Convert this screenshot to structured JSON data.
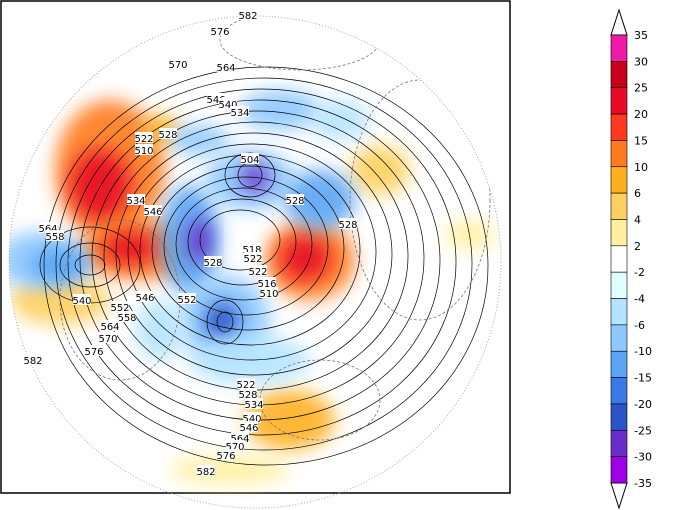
{
  "colorbar": {
    "labels": [
      35,
      30,
      25,
      20,
      15,
      10,
      6,
      4,
      2,
      -2,
      -4,
      -6,
      -10,
      -15,
      -20,
      -25,
      -30,
      -35
    ],
    "colors": [
      "#f01aa8",
      "#c8001c",
      "#e80a28",
      "#ff3a22",
      "#ff7a1e",
      "#ffb020",
      "#ffd060",
      "#fff0a0",
      "#ffffff",
      "#e0ffff",
      "#b4e4ff",
      "#8cc8ff",
      "#5aa5f5",
      "#3a7ae8",
      "#2a55c8",
      "#6a2ec8",
      "#a000e6"
    ]
  },
  "contour_labels": [
    "582",
    "576",
    "570",
    "564",
    "546",
    "540",
    "534",
    "528",
    "522",
    "510",
    "504",
    "528",
    "528",
    "534",
    "546",
    "564",
    "558",
    "518",
    "528",
    "522",
    "522",
    "516",
    "510",
    "546",
    "552",
    "540",
    "552",
    "558",
    "564",
    "570",
    "576",
    "582",
    "522",
    "528",
    "534",
    "540",
    "546",
    "564",
    "570",
    "576",
    "582"
  ]
}
